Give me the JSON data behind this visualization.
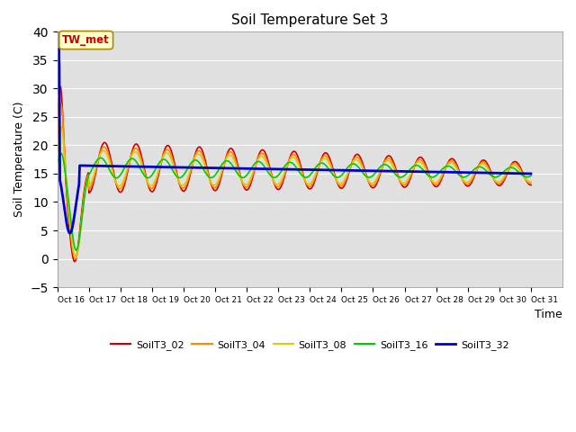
{
  "title": "Soil Temperature Set 3",
  "xlabel": "Time",
  "ylabel": "Soil Temperature (C)",
  "xlim": [
    0,
    16
  ],
  "ylim": [
    -5,
    40
  ],
  "yticks": [
    -5,
    0,
    5,
    10,
    15,
    20,
    25,
    30,
    35,
    40
  ],
  "xtick_positions": [
    0,
    1,
    2,
    3,
    4,
    5,
    6,
    7,
    8,
    9,
    10,
    11,
    12,
    13,
    14,
    15,
    16
  ],
  "xtick_labels": [
    "Oct 16",
    "Oct 17",
    "Oct 18",
    "Oct 19",
    "Oct 20",
    "Oct 21",
    "Oct 22",
    "Oct 23",
    "Oct 24",
    "Oct 25",
    "Oct 26",
    "Oct 27",
    "Oct 28",
    "Oct 29",
    "Oct 30",
    "Oct 31",
    ""
  ],
  "bg_color": "#e0e0e0",
  "fig_color": "#ffffff",
  "grid_color": "#ffffff",
  "series": {
    "SoilT3_02": {
      "color": "#cc0000",
      "linewidth": 1.2
    },
    "SoilT3_04": {
      "color": "#ff8800",
      "linewidth": 1.2
    },
    "SoilT3_08": {
      "color": "#ddcc00",
      "linewidth": 1.2
    },
    "SoilT3_16": {
      "color": "#00cc00",
      "linewidth": 1.2
    },
    "SoilT3_32": {
      "color": "#0000cc",
      "linewidth": 2.0
    }
  },
  "annotation_text": "TW_met",
  "annotation_color": "#cc0000",
  "annotation_bg": "#ffffcc",
  "annotation_border": "#aa8800"
}
